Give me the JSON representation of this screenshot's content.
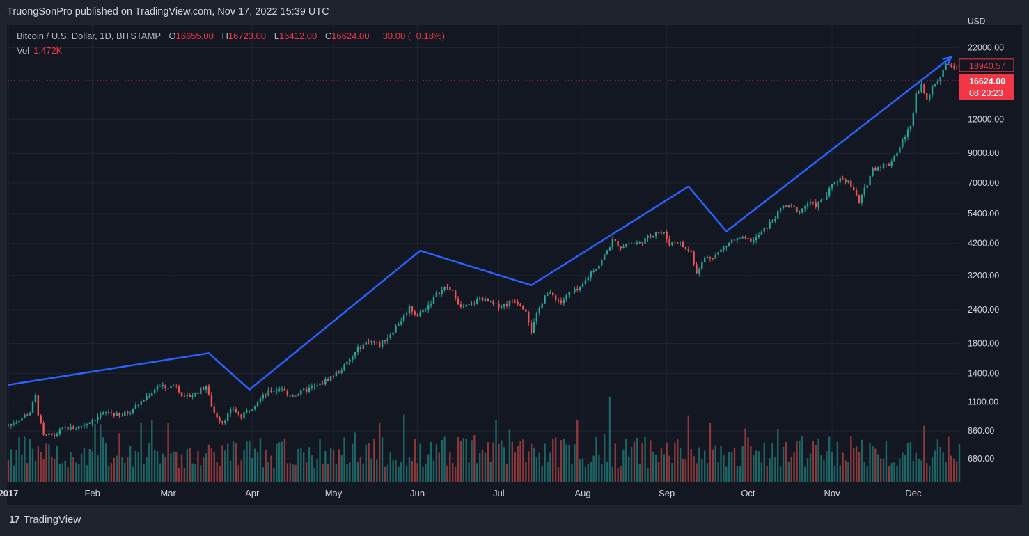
{
  "header": {
    "published_text": "TruongSonPro published on TradingView.com, Nov 17, 2022 15:39 UTC"
  },
  "legend": {
    "symbol": "Bitcoin / U.S. Dollar, 1D, BITSTAMP",
    "open_label": "O",
    "open": "16655.00",
    "high_label": "H",
    "high": "16723.00",
    "low_label": "L",
    "low": "16412.00",
    "close_label": "C",
    "close": "16624.00",
    "change": "−30.00 (−0.18%)",
    "vol_label": "Vol",
    "vol": "1.472K"
  },
  "footer": {
    "brand_logo": "17",
    "brand": "TradingView"
  },
  "colors": {
    "up": "#26a69a",
    "down": "#ef5350",
    "arrow": "#2962ff",
    "bg": "#131722",
    "price_tag": "#f23645"
  },
  "chart_data": {
    "type": "candlestick",
    "scale": "log",
    "currency_label": "USD",
    "ytick_labels": [
      "22000.00",
      "12000.00",
      "9000.00",
      "7000.00",
      "5400.00",
      "4200.00",
      "3200.00",
      "2400.00",
      "1800.00",
      "1400.00",
      "1100.00",
      "860.00",
      "680.00"
    ],
    "y_ticks": [
      22000,
      12000,
      9000,
      7000,
      5400,
      4200,
      3200,
      2400,
      1800,
      1400,
      1100,
      860,
      680
    ],
    "ylim": [
      560,
      26000
    ],
    "x_labels": [
      "2017",
      "Feb",
      "Mar",
      "Apr",
      "May",
      "Jun",
      "Jul",
      "Aug",
      "Sep",
      "Oct",
      "Nov",
      "Dec"
    ],
    "x_label_days": [
      1,
      32,
      60,
      91,
      121,
      152,
      182,
      213,
      244,
      274,
      305,
      335
    ],
    "x_range_days": [
      1,
      352
    ],
    "current_price": "16624.00",
    "countdown": "08:20:23",
    "high_marker": "18940.57",
    "current_price_value": 16624,
    "high_marker_value": 18940.57,
    "price_anchors": [
      [
        1,
        900
      ],
      [
        5,
        950
      ],
      [
        9,
        1010
      ],
      [
        11,
        1150
      ],
      [
        12,
        1000
      ],
      [
        14,
        820
      ],
      [
        18,
        830
      ],
      [
        22,
        880
      ],
      [
        26,
        880
      ],
      [
        30,
        920
      ],
      [
        34,
        970
      ],
      [
        38,
        1010
      ],
      [
        42,
        970
      ],
      [
        46,
        1020
      ],
      [
        50,
        1100
      ],
      [
        54,
        1200
      ],
      [
        56,
        1260
      ],
      [
        59,
        1240
      ],
      [
        63,
        1270
      ],
      [
        66,
        1130
      ],
      [
        70,
        1180
      ],
      [
        74,
        1260
      ],
      [
        75,
        1150
      ],
      [
        77,
        1000
      ],
      [
        80,
        930
      ],
      [
        84,
        1040
      ],
      [
        87,
        960
      ],
      [
        90,
        1040
      ],
      [
        94,
        1130
      ],
      [
        98,
        1210
      ],
      [
        102,
        1240
      ],
      [
        104,
        1160
      ],
      [
        108,
        1180
      ],
      [
        112,
        1230
      ],
      [
        116,
        1270
      ],
      [
        120,
        1360
      ],
      [
        124,
        1450
      ],
      [
        127,
        1560
      ],
      [
        130,
        1720
      ],
      [
        134,
        1850
      ],
      [
        138,
        1780
      ],
      [
        142,
        1960
      ],
      [
        146,
        2200
      ],
      [
        149,
        2450
      ],
      [
        152,
        2280
      ],
      [
        156,
        2500
      ],
      [
        160,
        2800
      ],
      [
        163,
        2900
      ],
      [
        166,
        2700
      ],
      [
        168,
        2430
      ],
      [
        172,
        2500
      ],
      [
        175,
        2650
      ],
      [
        178,
        2560
      ],
      [
        181,
        2480
      ],
      [
        184,
        2500
      ],
      [
        188,
        2600
      ],
      [
        190,
        2520
      ],
      [
        192,
        2400
      ],
      [
        194,
        2000
      ],
      [
        196,
        2280
      ],
      [
        199,
        2750
      ],
      [
        202,
        2700
      ],
      [
        205,
        2550
      ],
      [
        208,
        2750
      ],
      [
        212,
        2850
      ],
      [
        216,
        3300
      ],
      [
        219,
        3500
      ],
      [
        222,
        3950
      ],
      [
        224,
        4300
      ],
      [
        227,
        4100
      ],
      [
        230,
        4200
      ],
      [
        234,
        4200
      ],
      [
        237,
        4400
      ],
      [
        240,
        4650
      ],
      [
        243,
        4550
      ],
      [
        245,
        4200
      ],
      [
        248,
        4300
      ],
      [
        251,
        4000
      ],
      [
        253,
        3900
      ],
      [
        255,
        3300
      ],
      [
        258,
        3700
      ],
      [
        262,
        3800
      ],
      [
        265,
        4050
      ],
      [
        268,
        4300
      ],
      [
        272,
        4350
      ],
      [
        276,
        4300
      ],
      [
        280,
        4700
      ],
      [
        283,
        5100
      ],
      [
        287,
        5750
      ],
      [
        290,
        5700
      ],
      [
        293,
        5500
      ],
      [
        296,
        5900
      ],
      [
        299,
        5800
      ],
      [
        302,
        6100
      ],
      [
        306,
        7100
      ],
      [
        309,
        7300
      ],
      [
        311,
        7100
      ],
      [
        313,
        6600
      ],
      [
        315,
        5900
      ],
      [
        317,
        6600
      ],
      [
        320,
        7900
      ],
      [
        323,
        8100
      ],
      [
        326,
        8200
      ],
      [
        328,
        8800
      ],
      [
        330,
        9500
      ],
      [
        332,
        10500
      ],
      [
        334,
        11200
      ],
      [
        336,
        15000
      ],
      [
        338,
        16000
      ],
      [
        340,
        14500
      ],
      [
        343,
        16200
      ],
      [
        345,
        17300
      ],
      [
        347,
        18800
      ],
      [
        349,
        19000
      ]
    ],
    "volume": [
      620,
      1500
    ]
  },
  "arrow_path": [
    [
      1,
      1270
    ],
    [
      75,
      1660
    ],
    [
      90,
      1220
    ],
    [
      153,
      3950
    ],
    [
      194,
      2950
    ],
    [
      252,
      6800
    ],
    [
      266,
      4650
    ],
    [
      349,
      20300
    ]
  ]
}
